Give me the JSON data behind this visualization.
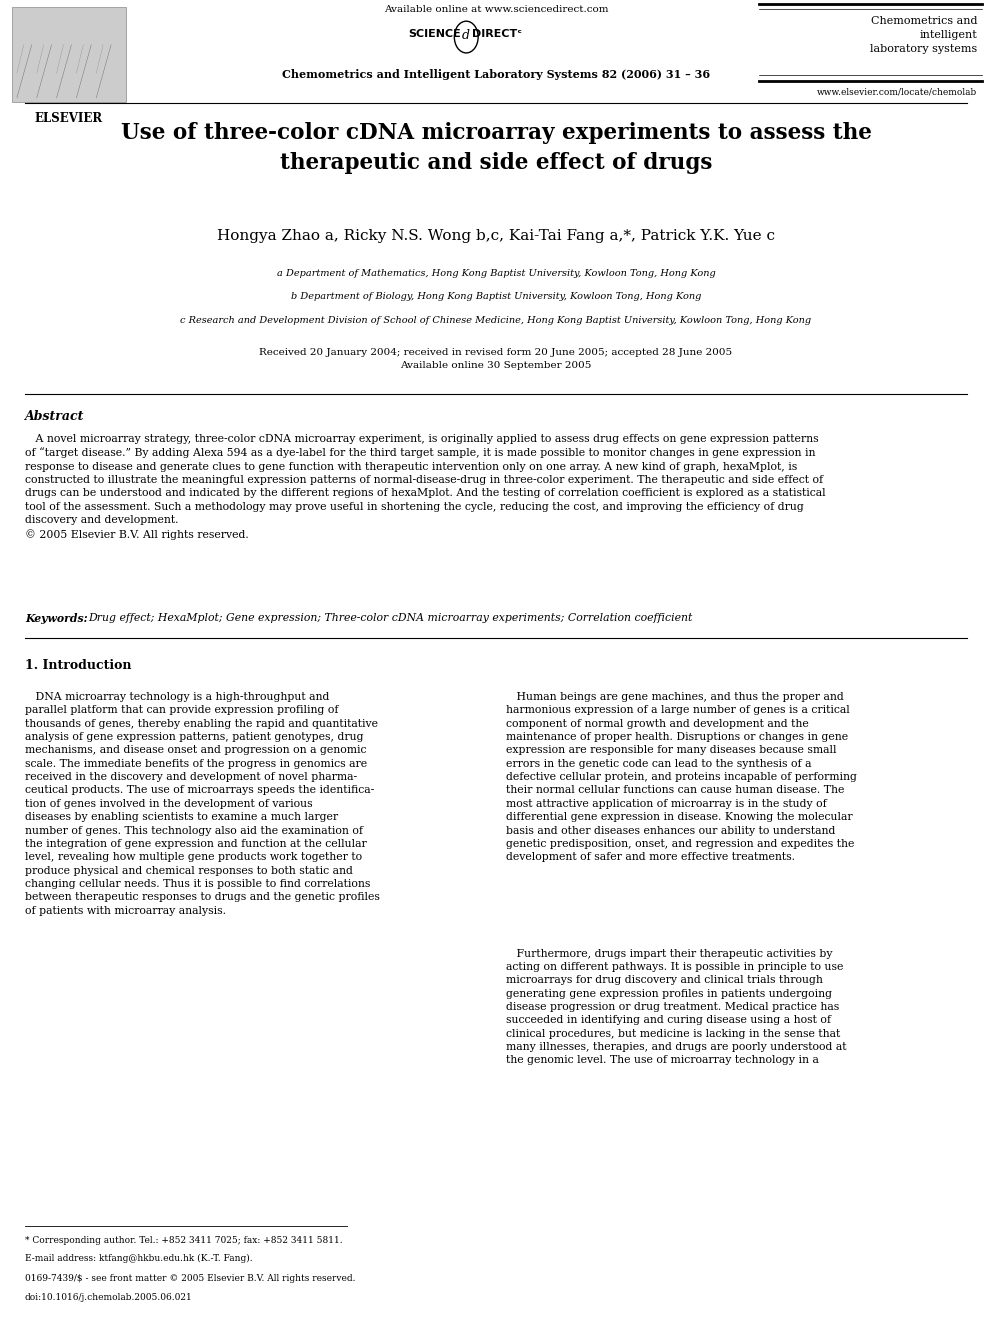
{
  "bg_color": "#ffffff",
  "available_online": "Available online at www.sciencedirect.com",
  "journal_name": "Chemometrics and Intelligent Laboratory Systems 82 (2006) 31 – 36",
  "journal_short_top": "Chemometrics and\nintelligent\nlaboratory systems",
  "website": "www.elsevier.com/locate/chemolab",
  "title": "Use of three-color cDNA microarray experiments to assess the\ntherapeutic and side effect of drugs",
  "authors": "Hongya Zhao a, Ricky N.S. Wong b,c, Kai-Tai Fang a,*, Patrick Y.K. Yue c",
  "aff1": "a Department of Mathematics, Hong Kong Baptist University, Kowloon Tong, Hong Kong",
  "aff2": "b Department of Biology, Hong Kong Baptist University, Kowloon Tong, Hong Kong",
  "aff3": "c Research and Development Division of School of Chinese Medicine, Hong Kong Baptist University, Kowloon Tong, Hong Kong",
  "dates": "Received 20 January 2004; received in revised form 20 June 2005; accepted 28 June 2005\nAvailable online 30 September 2005",
  "abstract_title": "Abstract",
  "abstract_text": "   A novel microarray strategy, three-color cDNA microarray experiment, is originally applied to assess drug effects on gene expression patterns\nof “target disease.” By adding Alexa 594 as a dye-label for the third target sample, it is made possible to monitor changes in gene expression in\nresponse to disease and generate clues to gene function with therapeutic intervention only on one array. A new kind of graph, hexaMplot, is\nconstructed to illustrate the meaningful expression patterns of normal-disease-drug in three-color experiment. The therapeutic and side effect of\ndrugs can be understood and indicated by the different regions of hexaMplot. And the testing of correlation coefficient is explored as a statistical\ntool of the assessment. Such a methodology may prove useful in shortening the cycle, reducing the cost, and improving the efficiency of drug\ndiscovery and development.\n© 2005 Elsevier B.V. All rights reserved.",
  "keywords_label": "Keywords:",
  "keywords_text": "Drug effect; HexaMplot; Gene expression; Three-color cDNA microarray experiments; Correlation coefficient",
  "section1_title": "1. Introduction",
  "col1_text": "   DNA microarray technology is a high-throughput and\nparallel platform that can provide expression profiling of\nthousands of genes, thereby enabling the rapid and quantitative\nanalysis of gene expression patterns, patient genotypes, drug\nmechanisms, and disease onset and progression on a genomic\nscale. The immediate benefits of the progress in genomics are\nreceived in the discovery and development of novel pharma-\nceutical products. The use of microarrays speeds the identiﬁca-\ntion of genes involved in the development of various\ndiseases by enabling scientists to examine a much larger\nnumber of genes. This technology also aid the examination of\nthe integration of gene expression and function at the cellular\nlevel, revealing how multiple gene products work together to\nproduce physical and chemical responses to both static and\nchanging cellular needs. Thus it is possible to ﬁnd correlations\nbetween therapeutic responses to drugs and the genetic proﬁles\nof patients with microarray analysis.",
  "col2_text1": "   Human beings are gene machines, and thus the proper and\nharmonious expression of a large number of genes is a critical\ncomponent of normal growth and development and the\nmaintenance of proper health. Disruptions or changes in gene\nexpression are responsible for many diseases because small\nerrors in the genetic code can lead to the synthesis of a\ndefective cellular protein, and proteins incapable of performing\ntheir normal cellular functions can cause human disease. The\nmost attractive application of microarray is in the study of\ndifferential gene expression in disease. Knowing the molecular\nbasis and other diseases enhances our ability to understand\ngenetic predisposition, onset, and regression and expedites the\ndevelopment of safer and more effective treatments.",
  "col2_text2": "   Furthermore, drugs impart their therapeutic activities by\nacting on different pathways. It is possible in principle to use\nmicroarrays for drug discovery and clinical trials through\ngenerating gene expression proﬁles in patients undergoing\ndisease progression or drug treatment. Medical practice has\nsucceeded in identifying and curing disease using a host of\nclinical procedures, but medicine is lacking in the sense that\nmany illnesses, therapies, and drugs are poorly understood at\nthe genomic level. The use of microarray technology in a",
  "footnote1": "* Corresponding author. Tel.: +852 3411 7025; fax: +852 3411 5811.",
  "footnote2": "E-mail address: ktfang@hkbu.edu.hk (K.-T. Fang).",
  "footnote3": "0169-7439/$ - see front matter © 2005 Elsevier B.V. All rights reserved.",
  "footnote4": "doi:10.1016/j.chemolab.2005.06.021"
}
